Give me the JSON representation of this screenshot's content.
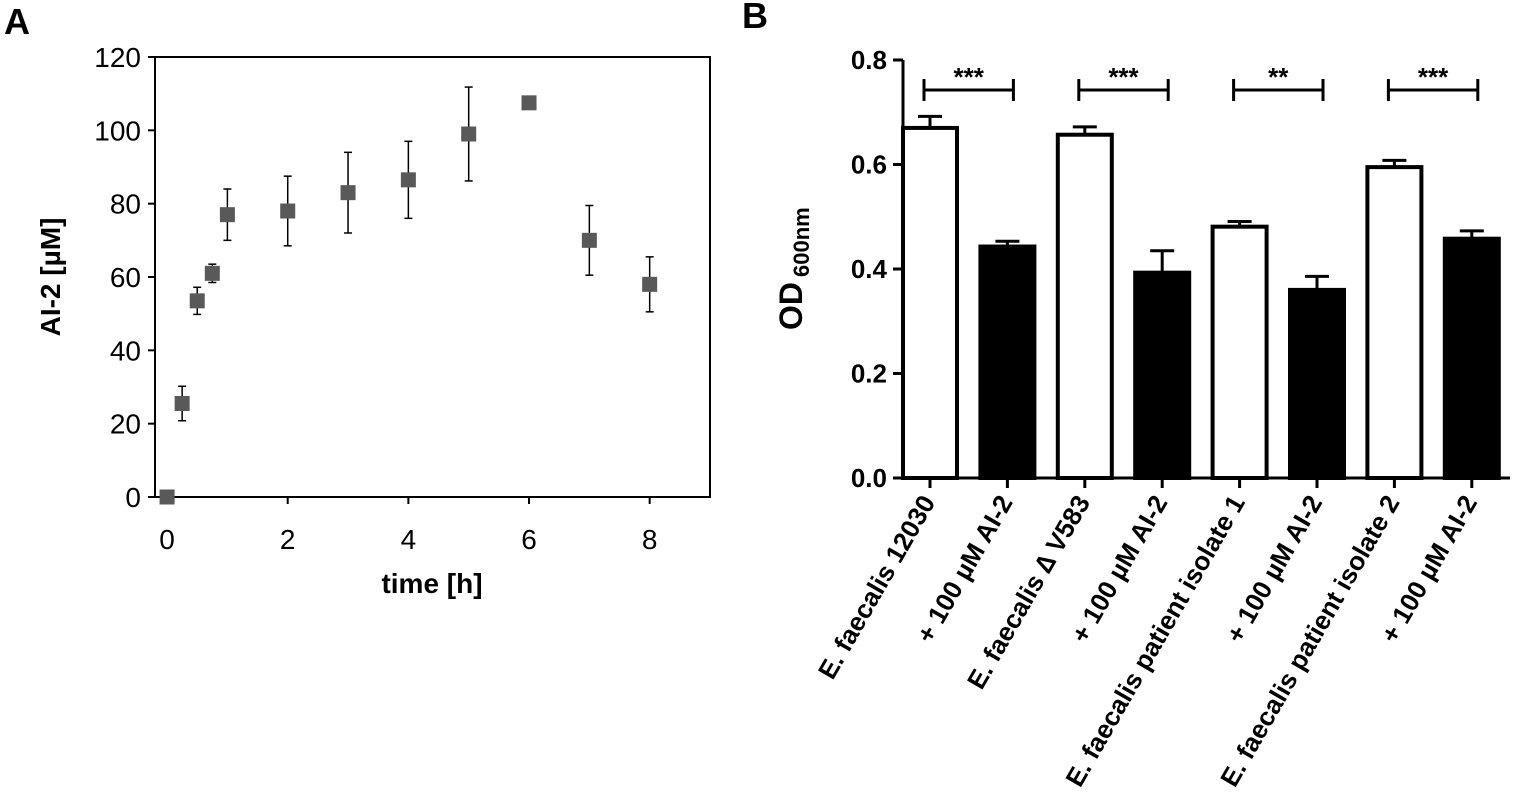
{
  "panels": {
    "a": {
      "letter": "A"
    },
    "b": {
      "letter": "B"
    }
  },
  "chart_data": [
    {
      "panel": "A",
      "type": "scatter",
      "xlabel": "time [h]",
      "ylabel": "AI-2 [µM]",
      "xlim": [
        -0.2,
        9
      ],
      "ylim": [
        0,
        120
      ],
      "xticks": [
        "0",
        "2",
        "4",
        "6",
        "8"
      ],
      "yticks": [
        "0",
        "20",
        "40",
        "60",
        "80",
        "100",
        "120"
      ],
      "grid": false,
      "marker": "square",
      "marker_color": "#595959",
      "x": [
        0,
        0.25,
        0.5,
        0.75,
        1,
        2,
        3,
        4,
        5,
        6,
        7,
        8
      ],
      "y": [
        0,
        25.5,
        53.5,
        61,
        77,
        78,
        83,
        86.5,
        99,
        107.5,
        70,
        58
      ],
      "error": [
        0.5,
        4.7,
        3.7,
        2.5,
        7,
        9.5,
        11,
        10.5,
        12.8,
        1.5,
        9.5,
        7.5
      ]
    },
    {
      "panel": "B",
      "type": "bar",
      "ylabel": "OD",
      "ylabel_sub": "600nm",
      "ylim": [
        0,
        0.8
      ],
      "yticks": [
        "0.0",
        "0.2",
        "0.4",
        "0.6",
        "0.8"
      ],
      "grid": false,
      "categories": [
        "E. faecalis 12030",
        "+ 100 µM AI-2",
        "E. faecalis ∆ V583",
        "+ 100 µM AI-2",
        "E. faecalis patient isolate 1",
        "+ 100 µM AI-2",
        "E. faecalis patient isolate 2",
        "+ 100 µM AI-2"
      ],
      "values": [
        0.67,
        0.443,
        0.657,
        0.393,
        0.481,
        0.36,
        0.595,
        0.458
      ],
      "error": [
        0.022,
        0.01,
        0.015,
        0.042,
        0.01,
        0.026,
        0.013,
        0.015
      ],
      "fills": [
        "#ffffff",
        "#000000",
        "#ffffff",
        "#000000",
        "#ffffff",
        "#000000",
        "#ffffff",
        "#000000"
      ],
      "significance": [
        {
          "from": 0,
          "to": 1,
          "label": "***"
        },
        {
          "from": 2,
          "to": 3,
          "label": "***"
        },
        {
          "from": 4,
          "to": 5,
          "label": "**"
        },
        {
          "from": 6,
          "to": 7,
          "label": "***"
        }
      ]
    }
  ]
}
